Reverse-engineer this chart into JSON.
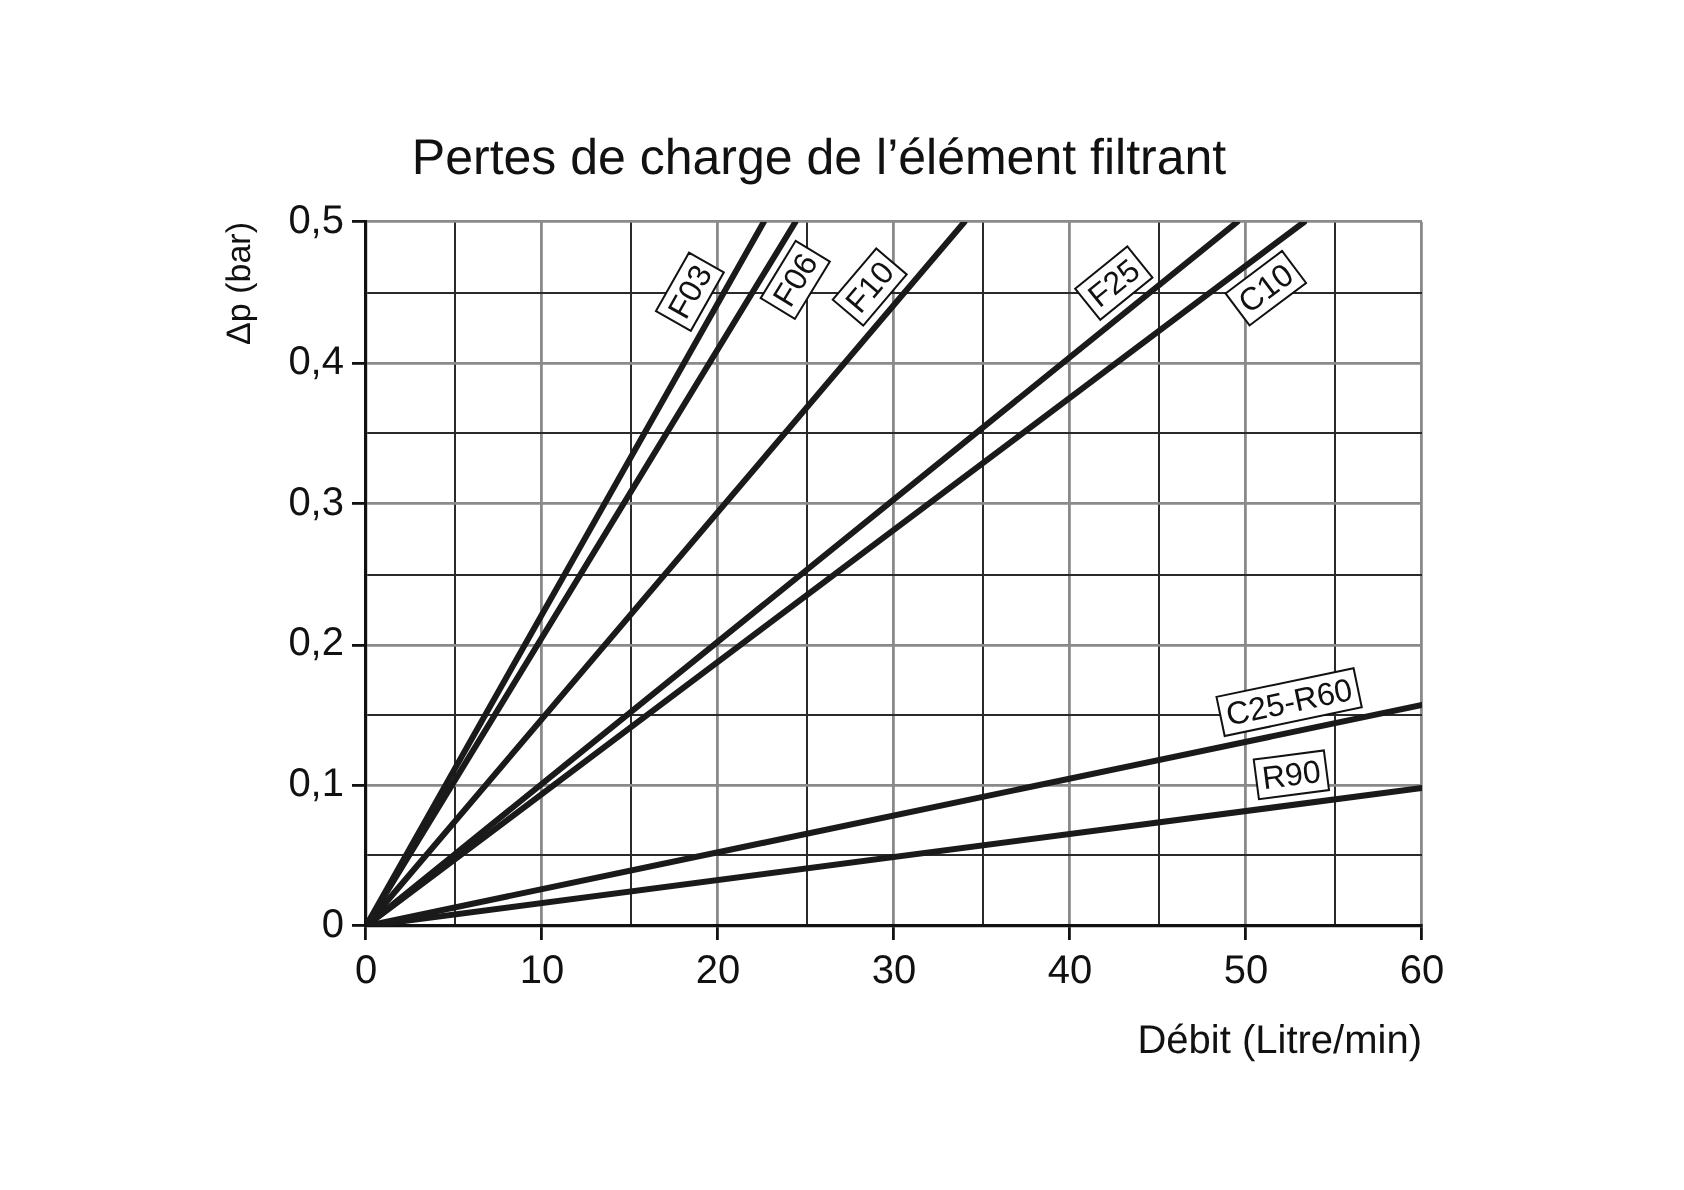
{
  "chart_data": {
    "type": "line",
    "title": "Pertes de charge de l’élément filtrant",
    "xlabel": "Débit (Litre/min)",
    "ylabel": "Δp (bar)",
    "series": [
      {
        "name": "F03",
        "color": "#1a1a1a",
        "x": [
          0,
          22.6
        ],
        "values": [
          0,
          0.5
        ]
      },
      {
        "name": "F06",
        "color": "#1a1a1a",
        "x": [
          0,
          24.4
        ],
        "values": [
          0,
          0.5
        ]
      },
      {
        "name": "F10",
        "color": "#1a1a1a",
        "x": [
          0,
          34
        ],
        "values": [
          0,
          0.5
        ]
      },
      {
        "name": "F25",
        "color": "#1a1a1a",
        "x": [
          0,
          49.5
        ],
        "values": [
          0,
          0.5
        ]
      },
      {
        "name": "C10",
        "color": "#1a1a1a",
        "x": [
          0,
          53.3
        ],
        "values": [
          0,
          0.5
        ]
      },
      {
        "name": "C25-R60",
        "color": "#1a1a1a",
        "x": [
          0,
          60
        ],
        "values": [
          0,
          0.157
        ]
      },
      {
        "name": "R90",
        "color": "#1a1a1a",
        "x": [
          0,
          60
        ],
        "values": [
          0,
          0.098
        ]
      }
    ],
    "xlim": [
      0,
      60
    ],
    "xticks": [
      0,
      {
        "value": 5,
        "label": null
      },
      10,
      {
        "value": 15,
        "label": null
      },
      20,
      {
        "value": 25,
        "label": null
      },
      30,
      {
        "value": 35,
        "label": null
      },
      40,
      {
        "value": 45,
        "label": null
      },
      50,
      {
        "value": 55,
        "label": null
      },
      60
    ],
    "ylim": [
      0,
      0.5
    ],
    "yticks": [
      0,
      {
        "value": 0.05,
        "label": null
      },
      {
        "value": 0.1,
        "label": "0,1"
      },
      {
        "value": 0.15,
        "label": null
      },
      {
        "value": 0.2,
        "label": "0,2"
      },
      {
        "value": 0.25,
        "label": null
      },
      {
        "value": 0.3,
        "label": "0,3"
      },
      {
        "value": 0.35,
        "label": null
      },
      {
        "value": 0.4,
        "label": "0,4"
      },
      {
        "value": 0.45,
        "label": null
      },
      {
        "value": 0.5,
        "label": "0,5"
      }
    ],
    "grid": true
  }
}
